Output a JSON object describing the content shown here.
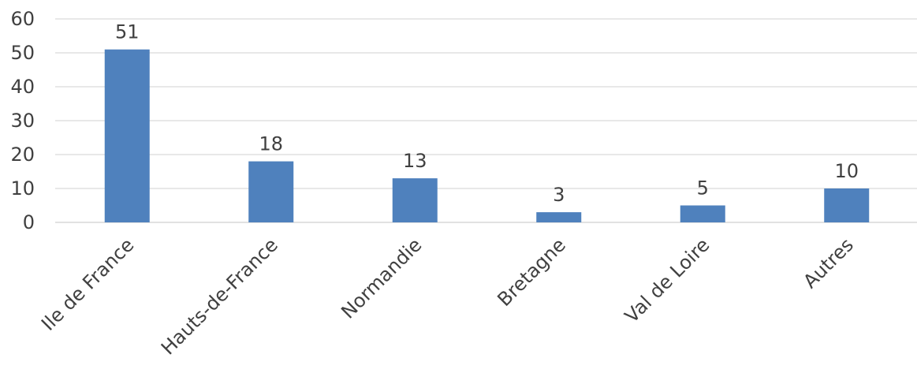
{
  "chart_data": {
    "type": "bar",
    "categories": [
      "Ile de France",
      "Hauts-de-France",
      "Normandie",
      "Bretagne",
      "Val de Loire",
      "Autres"
    ],
    "values": [
      51,
      18,
      13,
      3,
      5,
      10
    ],
    "title": "",
    "xlabel": "",
    "ylabel": "",
    "ylim": [
      0,
      60
    ],
    "yticks": [
      0,
      10,
      20,
      30,
      40,
      50,
      60
    ],
    "grid": true,
    "legend": "none",
    "bar_color": "#4f81bd",
    "data_labels": true
  }
}
